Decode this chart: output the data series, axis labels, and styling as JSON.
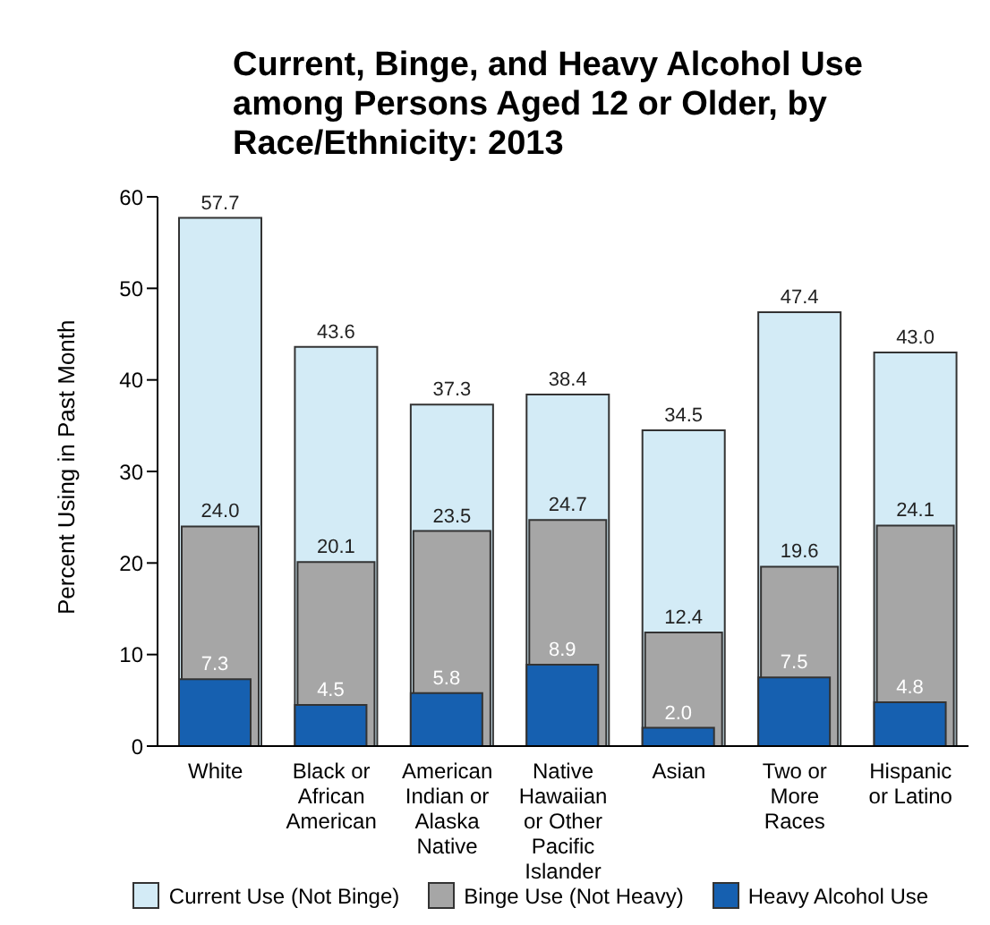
{
  "chart_data": {
    "type": "bar",
    "title": "Current, Binge, and Heavy Alcohol Use among Persons Aged 12 or Older, by Race/Ethnicity: 2013",
    "ylabel": "Percent Using in Past Month",
    "categories": [
      "White",
      "Black or African American",
      "American Indian or Alaska Native",
      "Native Hawaiian or Other Pacific Islander",
      "Asian",
      "Two or More Races",
      "Hispanic or Latino"
    ],
    "series": [
      {
        "name": "Current Use (Not Binge)",
        "color": "#d3ebf6",
        "values": [
          57.7,
          43.6,
          37.3,
          38.4,
          34.5,
          47.4,
          43.0
        ],
        "value_labels": [
          "57.7",
          "43.6",
          "37.3",
          "38.4",
          "34.5",
          "47.4",
          "43.0"
        ]
      },
      {
        "name": "Binge Use (Not Heavy)",
        "color": "#a6a6a6",
        "values": [
          24.0,
          20.1,
          23.5,
          24.7,
          12.4,
          19.6,
          24.1
        ],
        "value_labels": [
          "24.0",
          "20.1",
          "23.5",
          "24.7",
          "12.4",
          "19.6",
          "24.1"
        ]
      },
      {
        "name": "Heavy Alcohol Use",
        "color": "#1660b0",
        "values": [
          7.3,
          4.5,
          5.8,
          8.9,
          2.0,
          7.5,
          4.8
        ],
        "value_labels": [
          "7.3",
          "4.5",
          "5.8",
          "8.9",
          "2.0",
          "7.5",
          "4.8"
        ]
      }
    ],
    "ylim": [
      0,
      60
    ],
    "yticks": [
      0,
      10,
      20,
      30,
      40,
      50,
      60
    ],
    "grid": false,
    "legend": "bottom"
  }
}
